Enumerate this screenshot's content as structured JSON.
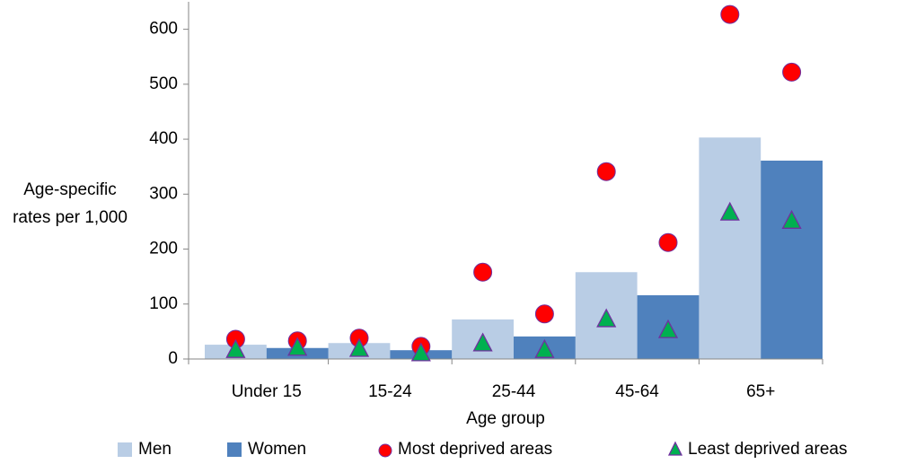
{
  "chart_data": {
    "type": "bar",
    "x_label": "Age group",
    "y_label": "Age-specific rates per 1,000",
    "categories": [
      "Under 15",
      "15-24",
      "25-44",
      "45-64",
      "65+"
    ],
    "ylim": [
      0,
      650
    ],
    "yticks": [
      0,
      100,
      200,
      300,
      400,
      500,
      600
    ],
    "series": [
      {
        "name": "Men",
        "type": "bar",
        "color": "#b9cde5",
        "values": [
          26,
          29,
          72,
          158,
          403
        ]
      },
      {
        "name": "Women",
        "type": "bar",
        "color": "#4f81bd",
        "values": [
          20,
          16,
          41,
          116,
          361
        ]
      },
      {
        "name": "Most deprived areas",
        "type": "scatter",
        "marker": "circle",
        "color": "#ff0000",
        "edge_color": "#7030a0",
        "values": [
          [
            36,
            33
          ],
          [
            38,
            23
          ],
          [
            158,
            82
          ],
          [
            341,
            212
          ],
          [
            627,
            522
          ]
        ]
      },
      {
        "name": "Least deprived areas",
        "type": "scatter",
        "marker": "triangle",
        "color": "#00b050",
        "edge_color": "#7030a0",
        "values": [
          [
            16,
            20
          ],
          [
            18,
            10
          ],
          [
            28,
            16
          ],
          [
            72,
            52
          ],
          [
            266,
            251
          ]
        ]
      }
    ]
  }
}
